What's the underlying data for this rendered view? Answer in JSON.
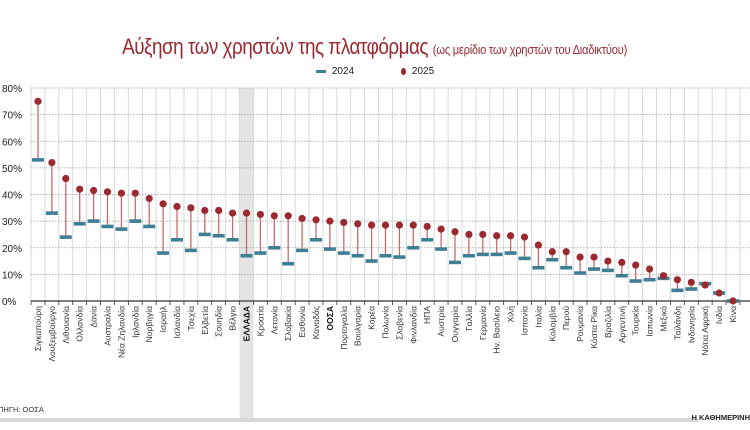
{
  "chart_data": {
    "type": "dumbbell",
    "title": "Αύξηση των χρηστών της πλατφόρμας",
    "subtitle": "(ως μερίδιο των χρηστών του Διαδικτύου)",
    "legend": [
      "2024",
      "2025"
    ],
    "legend_position": "top-center",
    "ylim": [
      0,
      80
    ],
    "yticks": [
      "0%",
      "10%",
      "20%",
      "30%",
      "40%",
      "50%",
      "60%",
      "70%",
      "80%"
    ],
    "ytick_values": [
      0,
      10,
      20,
      30,
      40,
      50,
      60,
      70,
      80
    ],
    "grid": true,
    "highlight": "ΕΛΛΑΔΑ",
    "bold_categories": [
      "ΕΛΛΑΔΑ",
      "ΟΟΣΑ"
    ],
    "categories": [
      "Σιγκαπούρη",
      "Λουξεμβούργο",
      "Λιθουανία",
      "Ολλανδία",
      "Δανία",
      "Αυστραλία",
      "Νέα Ζηλανδία",
      "Ιρλανδία",
      "Νορβηγία",
      "Ισραήλ",
      "Ισλανδία",
      "Τσεχία",
      "Ελβετία",
      "Σουηδία",
      "Βέλγιο",
      "ΕΛΛΑΔΑ",
      "Κροατία",
      "Λετονία",
      "Σλοβακία",
      "Εσθονία",
      "Καναδάς",
      "ΟΟΣΑ",
      "Πορτογαλία",
      "Βουλγαρία",
      "Κορέα",
      "Πολωνία",
      "Σλοβενία",
      "Φινλανδία",
      "ΗΠΑ",
      "Αυστρία",
      "Ουγγαρία",
      "Γαλλία",
      "Γερμανία",
      "Ην. Βασίλειο",
      "Χιλή",
      "Ισπανία",
      "Ιταλία",
      "Κολομβία",
      "Περού",
      "Ρουμανία",
      "Κόστα Ρίκα",
      "Βραζιλία",
      "Αργεντινή",
      "Τουρκία",
      "Ιαπωνία",
      "Μεξικό",
      "Ταϊλάνδη",
      "Ινδονησία",
      "Νότια Αφρική",
      "Ινδία",
      "Κίνα"
    ],
    "series": [
      {
        "name": "2024",
        "color": "#3f7f94",
        "values": [
          53,
          33,
          24,
          29,
          30,
          28,
          27,
          30,
          28,
          18,
          23,
          19,
          25,
          24.5,
          23,
          17,
          18,
          20,
          14,
          19,
          23,
          19.5,
          18,
          17,
          15,
          17,
          16.5,
          20,
          23,
          19.5,
          14.5,
          17,
          17.5,
          17.5,
          18,
          16,
          12.5,
          15.5,
          12.5,
          10.5,
          12,
          11.5,
          9.5,
          7.5,
          8,
          8.5,
          4,
          4.5,
          6.5,
          3,
          0
        ]
      },
      {
        "name": "2025",
        "color": "#9a2a30",
        "values": [
          75,
          52,
          46,
          42,
          41.5,
          41,
          40.5,
          40.5,
          38.5,
          36.5,
          35.5,
          35,
          34,
          34,
          33,
          33,
          32.5,
          32,
          32,
          31,
          30.5,
          30,
          29.5,
          29,
          28.5,
          28.5,
          28.5,
          28.5,
          28,
          27,
          26,
          25,
          25,
          24.5,
          24.5,
          24,
          21,
          18.5,
          18.5,
          16.5,
          16.5,
          15,
          14.5,
          13.5,
          12,
          9.5,
          8,
          7,
          6,
          3,
          0
        ]
      }
    ]
  },
  "footer": {
    "source": "ΠΗΓΗ: ΟΟΣΑ",
    "brand": "Η ΚΑΘΗΜΕΡΙΝΗ"
  }
}
